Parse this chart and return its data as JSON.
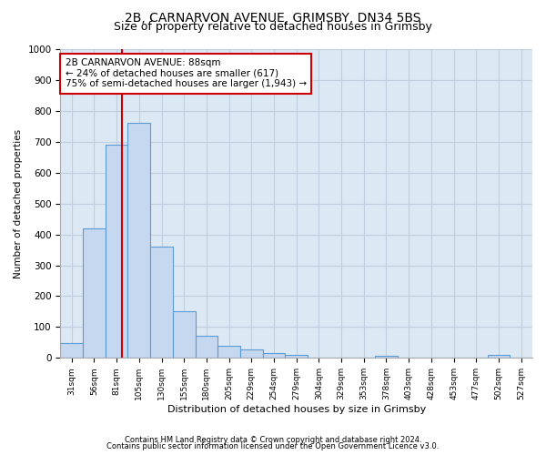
{
  "title1": "2B, CARNARVON AVENUE, GRIMSBY, DN34 5BS",
  "title2": "Size of property relative to detached houses in Grimsby",
  "xlabel": "Distribution of detached houses by size in Grimsby",
  "ylabel": "Number of detached properties",
  "categories": [
    "31sqm",
    "56sqm",
    "81sqm",
    "105sqm",
    "130sqm",
    "155sqm",
    "180sqm",
    "205sqm",
    "229sqm",
    "254sqm",
    "279sqm",
    "304sqm",
    "329sqm",
    "353sqm",
    "378sqm",
    "403sqm",
    "428sqm",
    "453sqm",
    "477sqm",
    "502sqm",
    "527sqm"
  ],
  "values": [
    47,
    420,
    690,
    760,
    360,
    150,
    72,
    38,
    27,
    15,
    10,
    0,
    0,
    0,
    8,
    0,
    0,
    0,
    0,
    10,
    0
  ],
  "bar_color": "#c5d8f0",
  "bar_edge_color": "#5b9bd5",
  "bar_linewidth": 0.8,
  "redline_x": 2.25,
  "annotation_text": "2B CARNARVON AVENUE: 88sqm\n← 24% of detached houses are smaller (617)\n75% of semi-detached houses are larger (1,943) →",
  "annotation_box_color": "#ffffff",
  "annotation_box_edge": "#cc0000",
  "ylim": [
    0,
    1000
  ],
  "yticks": [
    0,
    100,
    200,
    300,
    400,
    500,
    600,
    700,
    800,
    900,
    1000
  ],
  "footer1": "Contains HM Land Registry data © Crown copyright and database right 2024.",
  "footer2": "Contains public sector information licensed under the Open Government Licence v3.0.",
  "bg_color": "#ffffff",
  "grid_color": "#c0cfe0",
  "title1_fontsize": 10,
  "title2_fontsize": 9,
  "axis_bg": "#dde8f5"
}
